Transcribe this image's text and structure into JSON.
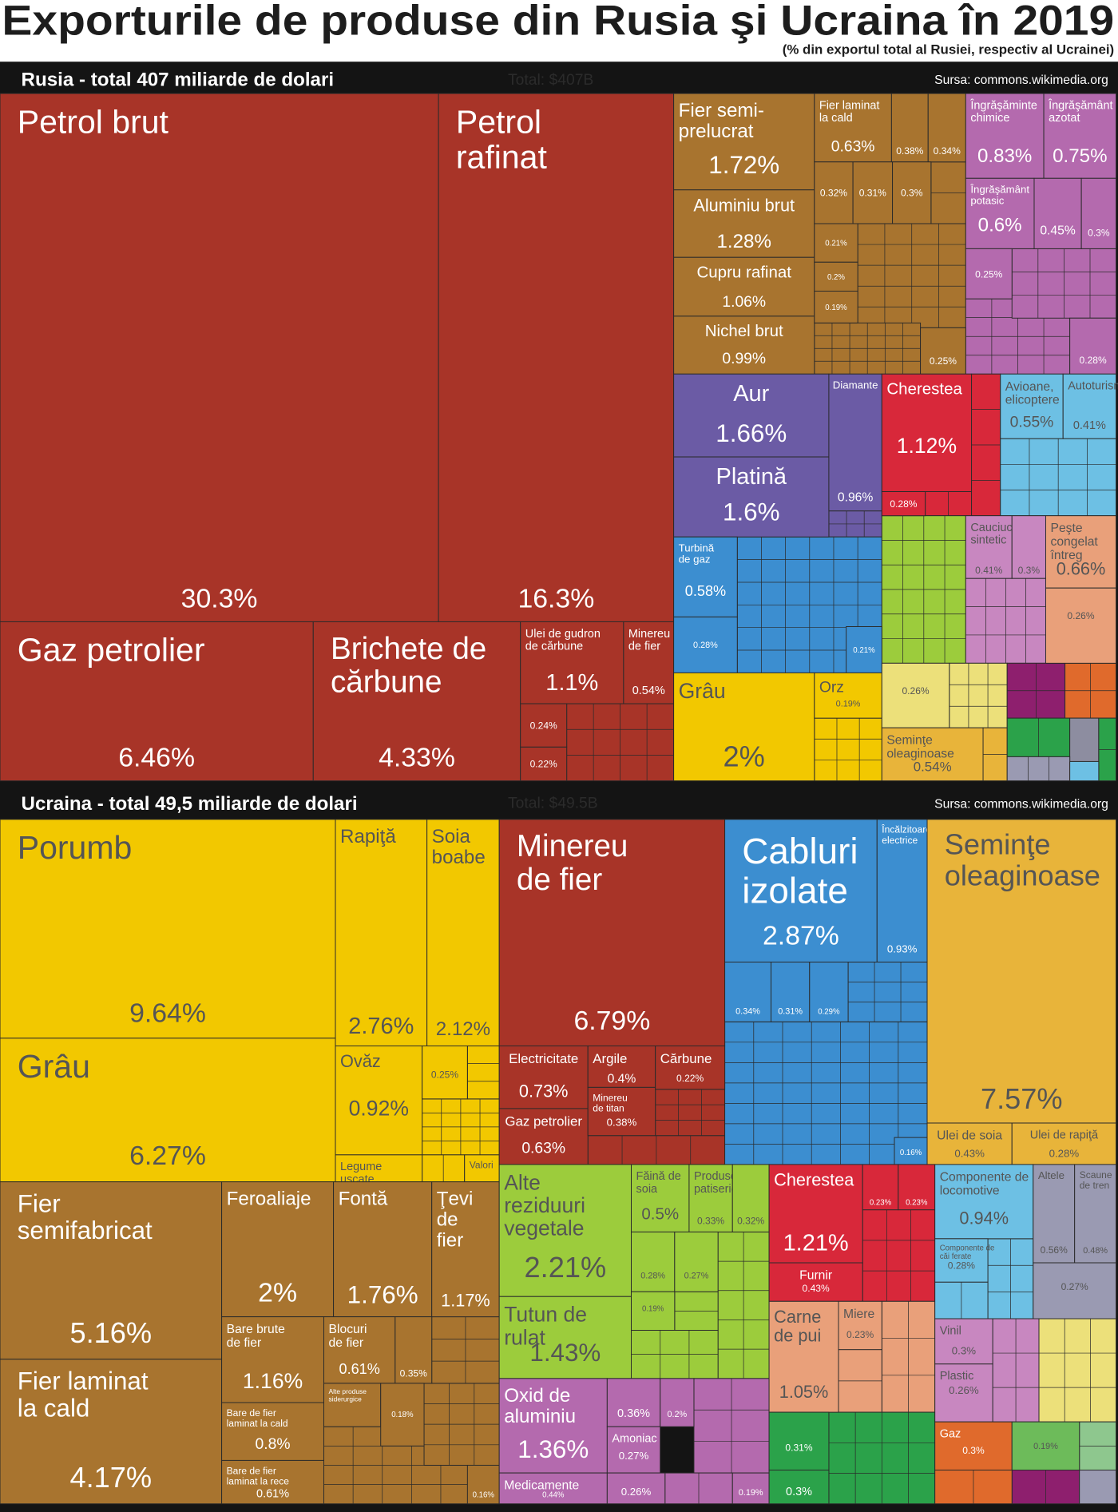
{
  "title": "Exporturile de produse din Rusia şi Ucraina în 2019",
  "subtitle": "(% din exportul total al Rusiei, respectiv al Ucrainei)",
  "chart_data": [
    {
      "type": "treemap",
      "title": "Rusia - total 407 miliarde de dolari",
      "annotation": "Total: $407B",
      "source": "Sursa: commons.wikimedia.org",
      "categories": [
        "Petrol brut",
        "Petrol rafinat",
        "Gaz petrolier",
        "Brichete de cărbune",
        "Ulei de gudron de cărbune",
        "Minereu de fier",
        null,
        null,
        "Fier semi-prelucrat",
        "Aluminiu brut",
        "Cupru rafinat",
        "Nichel brut",
        "Fier laminat la cald",
        null,
        null,
        null,
        null,
        null,
        null,
        null,
        null,
        null,
        "Îngrăşăminte chimice",
        "Îngrăşământ azotat",
        "Îngrăşământ potasic",
        null,
        null,
        null,
        null,
        "Aur",
        "Platină",
        "Diamante",
        "Cherestea",
        null,
        "Avioane, elicoptere",
        "Autoturisme",
        "Turbină de gaz",
        null,
        null,
        "Cauciuc sintetic",
        null,
        "Peşte congelat întreg",
        null,
        "Grâu",
        "Orz",
        null,
        "Seminţe oleaginoase"
      ],
      "values": [
        30.3,
        16.3,
        6.46,
        4.33,
        1.1,
        0.54,
        0.24,
        0.22,
        1.72,
        1.28,
        1.06,
        0.99,
        0.63,
        0.38,
        0.34,
        0.32,
        0.31,
        0.3,
        0.21,
        0.2,
        0.19,
        0.25,
        0.83,
        0.75,
        0.6,
        0.45,
        0.3,
        0.25,
        0.28,
        1.66,
        1.6,
        0.96,
        1.12,
        0.28,
        0.55,
        0.41,
        0.58,
        0.28,
        0.21,
        0.41,
        0.3,
        0.66,
        0.26,
        2,
        0.19,
        0.26,
        0.54
      ],
      "value_labels": [
        "30.3%",
        "16.3%",
        "6.46%",
        "4.33%",
        "1.1%",
        "0.54%",
        "0.24%",
        "0.22%",
        "1.72%",
        "1.28%",
        "1.06%",
        "0.99%",
        "0.63%",
        "0.38%",
        "0.34%",
        "0.32%",
        "0.31%",
        "0.3%",
        "0.21%",
        "0.2%",
        "0.19%",
        "0.25%",
        "0.83%",
        "0.75%",
        "0.6%",
        "0.45%",
        "0.3%",
        "0.25%",
        "0.28%",
        "1.66%",
        "1.6%",
        "0.96%",
        "1.12%",
        "0.28%",
        "0.55%",
        "0.41%",
        "0.58%",
        "0.28%",
        "0.21%",
        "0.41%",
        "0.3%",
        "0.66%",
        "0.26%",
        "2%",
        "0.19%",
        "0.26%",
        "0.54%"
      ],
      "colors": [
        "#a83428",
        "#a83428",
        "#a83428",
        "#a83428",
        "#a83428",
        "#a83428",
        "#a83428",
        "#a83428",
        "#a8742f",
        "#a8742f",
        "#a8742f",
        "#a8742f",
        "#a8742f",
        "#a8742f",
        "#a8742f",
        "#a8742f",
        "#a8742f",
        "#a8742f",
        "#a8742f",
        "#a8742f",
        "#a8742f",
        "#a8742f",
        "#b46aae",
        "#b46aae",
        "#b46aae",
        "#b46aae",
        "#b46aae",
        "#b46aae",
        "#b46aae",
        "#6b5ba5",
        "#6b5ba5",
        "#6b5ba5",
        "#d8283a",
        "#d8283a",
        "#6dc0e4",
        "#6dc0e4",
        "#3c8ed0",
        "#3c8ed0",
        "#3c8ed0",
        "#c887c0",
        "#c887c0",
        "#e9a07a",
        "#e9a07a",
        "#f2c800",
        "#f2c800",
        "#ece07a",
        "#e8b43a"
      ]
    },
    {
      "type": "treemap",
      "title": "Ucraina - total 49,5 miliarde de dolari",
      "annotation": "Total: $49.5B",
      "source": "Sursa: commons.wikimedia.org",
      "categories": [
        "Porumb",
        "Grâu",
        "Rapiţă",
        "Soia boabe",
        "Ovăz",
        null,
        "Legume uscate",
        "Valori",
        "Fier semifabricat",
        "Fier laminat la cald",
        "Feroaliaje",
        "Fontă",
        "Ţevi de fier",
        "Bare brute de fier",
        "Blocuri de fier",
        null,
        "Bare de fier laminat la cald",
        "Bare de fier laminat la rece",
        "Alte produse siderurgice",
        null,
        null,
        "Minereu de fier",
        "Electricitate",
        "Gaz petrolier",
        "Argile",
        "Minereu de titan",
        "Cărbune",
        "Cabluri izolate",
        "Încălzitoare electrice",
        null,
        null,
        null,
        null,
        "Seminţe oleaginoase",
        "Ulei de soia",
        "Ulei de rapiţă",
        "Alte reziduuri vegetale",
        "Tutun de rulat",
        "Făină de soia",
        "Produse de patiserie",
        null,
        null,
        null,
        null,
        "Oxid de aluminiu",
        "Medicamente",
        null,
        null,
        "Amoniac",
        null,
        null,
        "Cherestea",
        null,
        null,
        "Furnir",
        "Carne de pui",
        "Miere",
        null,
        null,
        "Componente de locomotive",
        "Componente de căi ferate",
        "Altele",
        "Scaune de tren",
        null,
        "Vinil",
        "Plastic",
        "Gaz",
        null
      ],
      "values": [
        9.64,
        6.27,
        2.76,
        2.12,
        0.92,
        0.25,
        0.2,
        0.1,
        5.16,
        4.17,
        2,
        1.76,
        1.17,
        1.16,
        0.61,
        0.35,
        0.8,
        0.61,
        0.2,
        0.18,
        0.16,
        6.79,
        0.73,
        0.63,
        0.4,
        0.38,
        0.22,
        2.87,
        0.93,
        0.34,
        0.31,
        0.29,
        0.16,
        7.57,
        0.43,
        0.28,
        2.21,
        1.43,
        0.5,
        0.33,
        0.32,
        0.28,
        0.27,
        0.19,
        1.36,
        0.44,
        0.36,
        0.2,
        0.27,
        0.26,
        0.19,
        1.21,
        0.23,
        0.23,
        0.43,
        1.05,
        0.23,
        0.31,
        0.3,
        0.94,
        0.28,
        0.56,
        0.48,
        0.27,
        0.3,
        0.26,
        0.3,
        0.19
      ],
      "value_labels": [
        "9.64%",
        "6.27%",
        "2.76%",
        "2.12%",
        "0.92%",
        "0.25%",
        null,
        null,
        "5.16%",
        "4.17%",
        "2%",
        "1.76%",
        "1.17%",
        "1.16%",
        "0.61%",
        "0.35%",
        "0.8%",
        "0.61%",
        null,
        "0.18%",
        "0.16%",
        "6.79%",
        "0.73%",
        "0.63%",
        "0.4%",
        "0.38%",
        "0.22%",
        "2.87%",
        "0.93%",
        "0.34%",
        "0.31%",
        "0.29%",
        "0.16%",
        "7.57%",
        "0.43%",
        "0.28%",
        "2.21%",
        "1.43%",
        "0.5%",
        "0.33%",
        "0.32%",
        "0.28%",
        "0.27%",
        "0.19%",
        "1.36%",
        "0.44%",
        "0.36%",
        "0.2%",
        "0.27%",
        "0.26%",
        "0.19%",
        "1.21%",
        "0.23%",
        "0.23%",
        "0.43%",
        "1.05%",
        "0.23%",
        "0.31%",
        "0.3%",
        "0.94%",
        "0.28%",
        "0.56%",
        "0.48%",
        "0.27%",
        "0.3%",
        "0.26%",
        "0.3%",
        "0.19%"
      ],
      "colors": [
        "#f2c800",
        "#f2c800",
        "#f2c800",
        "#f2c800",
        "#f2c800",
        "#f2c800",
        "#f2c800",
        "#f2c800",
        "#a8742f",
        "#a8742f",
        "#a8742f",
        "#a8742f",
        "#a8742f",
        "#a8742f",
        "#a8742f",
        "#a8742f",
        "#a8742f",
        "#a8742f",
        "#a8742f",
        "#a8742f",
        "#a8742f",
        "#a83428",
        "#a83428",
        "#a83428",
        "#a83428",
        "#a83428",
        "#a83428",
        "#3c8ed0",
        "#3c8ed0",
        "#3c8ed0",
        "#3c8ed0",
        "#3c8ed0",
        "#3c8ed0",
        "#e8b43a",
        "#e8b43a",
        "#e8b43a",
        "#9ccc3c",
        "#9ccc3c",
        "#9ccc3c",
        "#9ccc3c",
        "#9ccc3c",
        "#9ccc3c",
        "#9ccc3c",
        "#9ccc3c",
        "#b46aae",
        "#b46aae",
        "#b46aae",
        "#b46aae",
        "#b46aae",
        "#b46aae",
        "#b46aae",
        "#d8283a",
        "#d8283a",
        "#d8283a",
        "#d8283a",
        "#e9a07a",
        "#e9a07a",
        "#2ba24a",
        "#2ba24a",
        "#6dc0e4",
        "#6dc0e4",
        "#9a9ab2",
        "#9a9ab2",
        "#9a9ab2",
        "#c887c0",
        "#c887c0",
        "#e06a2c",
        "#6dbb5a"
      ]
    }
  ]
}
